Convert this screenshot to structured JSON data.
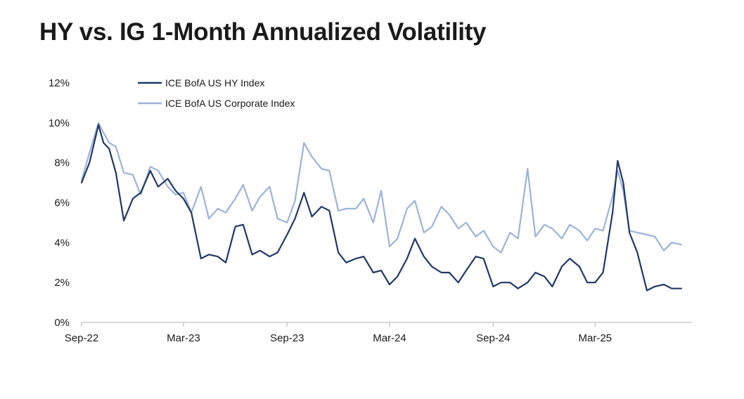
{
  "page": {
    "title": "HY vs. IG 1-Month Annualized Volatility"
  },
  "colors": {
    "hy": "#203864",
    "ig": "#9db3d8",
    "axis": "#bfbfbf",
    "background": "#ffffff"
  },
  "chart_data": {
    "type": "line",
    "title": "HY vs. IG 1-Month Annualized Volatility",
    "xlabel": "",
    "ylabel": "",
    "ylim": [
      0,
      12
    ],
    "y_ticks": [
      0,
      2,
      4,
      6,
      8,
      10,
      12
    ],
    "y_tick_labels": [
      "0%",
      "2%",
      "4%",
      "6%",
      "8%",
      "10%",
      "12%"
    ],
    "x_range": [
      "2022-09",
      "2025-08"
    ],
    "x_ticks": [
      "2022-09",
      "2023-03",
      "2023-09",
      "2024-03",
      "2024-09",
      "2025-03"
    ],
    "x_tick_labels": [
      "Sep-22",
      "Mar-23",
      "Sep-23",
      "Mar-24",
      "Sep-24",
      "Mar-25"
    ],
    "grid": false,
    "legend_position": "top-left",
    "x": [
      "2022-09-01",
      "2022-09-15",
      "2022-10-01",
      "2022-10-10",
      "2022-10-20",
      "2022-11-01",
      "2022-11-15",
      "2022-12-01",
      "2022-12-15",
      "2023-01-01",
      "2023-01-15",
      "2023-02-01",
      "2023-02-15",
      "2023-03-01",
      "2023-03-15",
      "2023-04-01",
      "2023-04-15",
      "2023-05-01",
      "2023-05-15",
      "2023-06-01",
      "2023-06-15",
      "2023-07-01",
      "2023-07-15",
      "2023-08-01",
      "2023-08-15",
      "2023-09-01",
      "2023-09-15",
      "2023-10-01",
      "2023-10-15",
      "2023-11-01",
      "2023-11-15",
      "2023-12-01",
      "2023-12-15",
      "2024-01-01",
      "2024-01-15",
      "2024-02-01",
      "2024-02-15",
      "2024-03-01",
      "2024-03-15",
      "2024-04-01",
      "2024-04-15",
      "2024-05-01",
      "2024-05-15",
      "2024-06-01",
      "2024-06-15",
      "2024-07-01",
      "2024-07-15",
      "2024-08-01",
      "2024-08-15",
      "2024-09-01",
      "2024-09-15",
      "2024-10-01",
      "2024-10-15",
      "2024-11-01",
      "2024-11-15",
      "2024-12-01",
      "2024-12-15",
      "2025-01-01",
      "2025-01-15",
      "2025-02-01",
      "2025-02-15",
      "2025-03-01",
      "2025-03-15",
      "2025-04-01",
      "2025-04-10",
      "2025-04-20",
      "2025-05-01",
      "2025-05-15",
      "2025-06-01",
      "2025-06-15",
      "2025-07-01",
      "2025-07-15",
      "2025-08-01"
    ],
    "series": [
      {
        "name": "ICE BofA US HY Index",
        "color": "#203864",
        "values": [
          7.0,
          8.0,
          9.9,
          9.0,
          8.7,
          7.5,
          5.1,
          6.2,
          6.5,
          7.6,
          6.8,
          7.2,
          6.6,
          6.2,
          5.5,
          3.2,
          3.4,
          3.3,
          3.0,
          4.8,
          4.9,
          3.4,
          3.6,
          3.3,
          3.5,
          4.4,
          5.2,
          6.5,
          5.3,
          5.8,
          5.6,
          3.5,
          3.0,
          3.2,
          3.3,
          2.5,
          2.6,
          1.9,
          2.3,
          3.2,
          4.2,
          3.3,
          2.8,
          2.5,
          2.5,
          2.0,
          2.6,
          3.3,
          3.2,
          1.8,
          2.0,
          2.0,
          1.7,
          2.0,
          2.5,
          2.3,
          1.8,
          2.8,
          3.2,
          2.8,
          2.0,
          2.0,
          2.5,
          5.5,
          8.1,
          7.0,
          4.5,
          3.5,
          1.6,
          1.8,
          1.9,
          1.7,
          1.7
        ]
      },
      {
        "name": "ICE BofA US Corporate Index",
        "color": "#9db3d8",
        "values": [
          7.1,
          8.5,
          10.0,
          9.5,
          9.0,
          8.8,
          7.5,
          7.4,
          6.4,
          7.8,
          7.6,
          6.8,
          6.4,
          6.5,
          5.5,
          6.8,
          5.2,
          5.7,
          5.5,
          6.2,
          6.9,
          5.6,
          6.3,
          6.8,
          5.2,
          5.0,
          6.1,
          9.0,
          8.3,
          7.7,
          7.6,
          5.6,
          5.7,
          5.7,
          6.2,
          5.0,
          6.6,
          3.8,
          4.2,
          5.7,
          6.1,
          4.5,
          4.8,
          5.8,
          5.4,
          4.7,
          5.0,
          4.3,
          4.6,
          3.8,
          3.5,
          4.5,
          4.2,
          7.7,
          4.3,
          4.9,
          4.7,
          4.2,
          4.9,
          4.6,
          4.1,
          4.7,
          4.6,
          6.3,
          7.6,
          6.6,
          4.6,
          4.5,
          4.4,
          4.3,
          3.6,
          4.0,
          3.9
        ]
      }
    ]
  }
}
